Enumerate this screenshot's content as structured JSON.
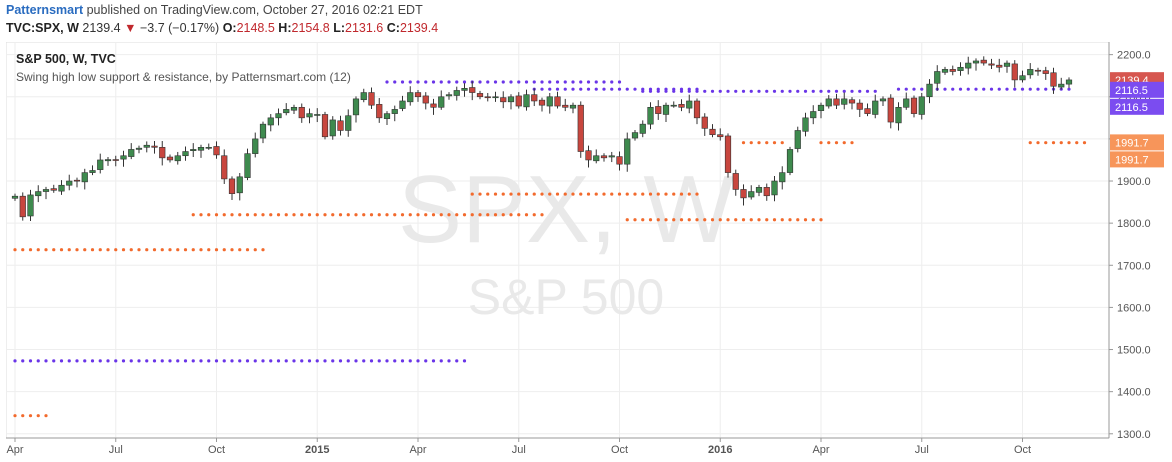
{
  "header": {
    "author": "Patternsmart",
    "published_text": "published on TradingView.com, October 27, 2016 02:21 EDT"
  },
  "quote": {
    "symbol": "TVC:SPX, W",
    "last": "2139.4",
    "change": "−3.7 (−0.17%)",
    "o_label": "O:",
    "o": "2148.5",
    "h_label": "H:",
    "h": "2154.8",
    "l_label": "L:",
    "l": "2131.6",
    "c_label": "C:",
    "c": "2139.4"
  },
  "legend": {
    "title": "S&P 500, W, TVC",
    "indicator": "Swing high low support & resistance, by Patternsmart.com (12)"
  },
  "watermark": {
    "symbol": "SPX, W",
    "name": "S&P 500"
  },
  "colors": {
    "up": "#3e8a4e",
    "down": "#c8463e",
    "resistance": "#6a35e8",
    "support": "#f26a2d",
    "last_price_bg": "#d6564f",
    "res_label_bg": "#7b4cf0",
    "sup_label_bg": "#f7955a",
    "grid": "#eeeeee"
  },
  "chart_data": {
    "type": "candlestick",
    "timeframe": "W",
    "ylim": [
      1290,
      2230
    ],
    "yticks": [
      1300,
      1400,
      1500,
      1600,
      1700,
      1800,
      1900,
      2000,
      2100,
      2200
    ],
    "x_ticks": [
      {
        "label": "Apr",
        "week": 0
      },
      {
        "label": "Jul",
        "week": 13
      },
      {
        "label": "Oct",
        "week": 26
      },
      {
        "label": "2015",
        "week": 39,
        "bold": true
      },
      {
        "label": "Apr",
        "week": 52
      },
      {
        "label": "Jul",
        "week": 65
      },
      {
        "label": "Oct",
        "week": 78
      },
      {
        "label": "2016",
        "week": 91,
        "bold": true
      },
      {
        "label": "Apr",
        "week": 104
      },
      {
        "label": "Jul",
        "week": 117
      },
      {
        "label": "Oct",
        "week": 130
      }
    ],
    "closes": [
      1864,
      1815,
      1867,
      1875,
      1880,
      1878,
      1890,
      1900,
      1900,
      1920,
      1925,
      1950,
      1951,
      1950,
      1960,
      1975,
      1978,
      1985,
      1980,
      1955,
      1950,
      1960,
      1970,
      1975,
      1980,
      1980,
      1962,
      1905,
      1870,
      1910,
      1965,
      2000,
      2035,
      2050,
      2060,
      2070,
      2075,
      2050,
      2060,
      2058,
      2005,
      2045,
      2020,
      2055,
      2095,
      2110,
      2080,
      2050,
      2060,
      2070,
      2090,
      2110,
      2100,
      2085,
      2075,
      2100,
      2105,
      2115,
      2120,
      2110,
      2100,
      2098,
      2100,
      2088,
      2100,
      2078,
      2105,
      2090,
      2080,
      2100,
      2078,
      2075,
      2080,
      1970,
      1950,
      1960,
      1955,
      1960,
      1940,
      2000,
      2015,
      2035,
      2075,
      2060,
      2080,
      2080,
      2075,
      2090,
      2050,
      2025,
      2010,
      2005,
      1920,
      1880,
      1860,
      1875,
      1885,
      1865,
      1900,
      1920,
      1975,
      2020,
      2050,
      2065,
      2080,
      2095,
      2080,
      2095,
      2085,
      2070,
      2060,
      2090,
      2095,
      2040,
      2075,
      2095,
      2060,
      2100,
      2130,
      2160,
      2165,
      2160,
      2170,
      2180,
      2185,
      2180,
      2175,
      2170,
      2180,
      2140,
      2150,
      2165,
      2162,
      2155,
      2125,
      2130,
      2140
    ],
    "last_price": 2139.4,
    "resistance_levels": [
      {
        "price": 2116.5,
        "label": "2116.5"
      },
      {
        "price": 2116.5,
        "label": "2116.5"
      }
    ],
    "support_levels": [
      {
        "price": 1991.7,
        "label": "1991.7"
      },
      {
        "price": 1991.7,
        "label": "1991.7"
      }
    ],
    "resistance_segments": [
      {
        "price": 1473,
        "from": 0,
        "to": 58
      },
      {
        "price": 2135,
        "from": 48,
        "to": 78
      },
      {
        "price": 2118,
        "from": 67,
        "to": 88
      },
      {
        "price": 2113,
        "from": 81,
        "to": 111
      },
      {
        "price": 2118,
        "from": 114,
        "to": 136
      }
    ],
    "support_segments": [
      {
        "price": 1343,
        "from": 0,
        "to": 4
      },
      {
        "price": 1737,
        "from": 0,
        "to": 32
      },
      {
        "price": 1820,
        "from": 23,
        "to": 68
      },
      {
        "price": 1869,
        "from": 59,
        "to": 88
      },
      {
        "price": 1808,
        "from": 79,
        "to": 104
      },
      {
        "price": 1991,
        "from": 94,
        "to": 99
      },
      {
        "price": 1991,
        "from": 104,
        "to": 108
      },
      {
        "price": 1991,
        "from": 131,
        "to": 138
      }
    ]
  }
}
